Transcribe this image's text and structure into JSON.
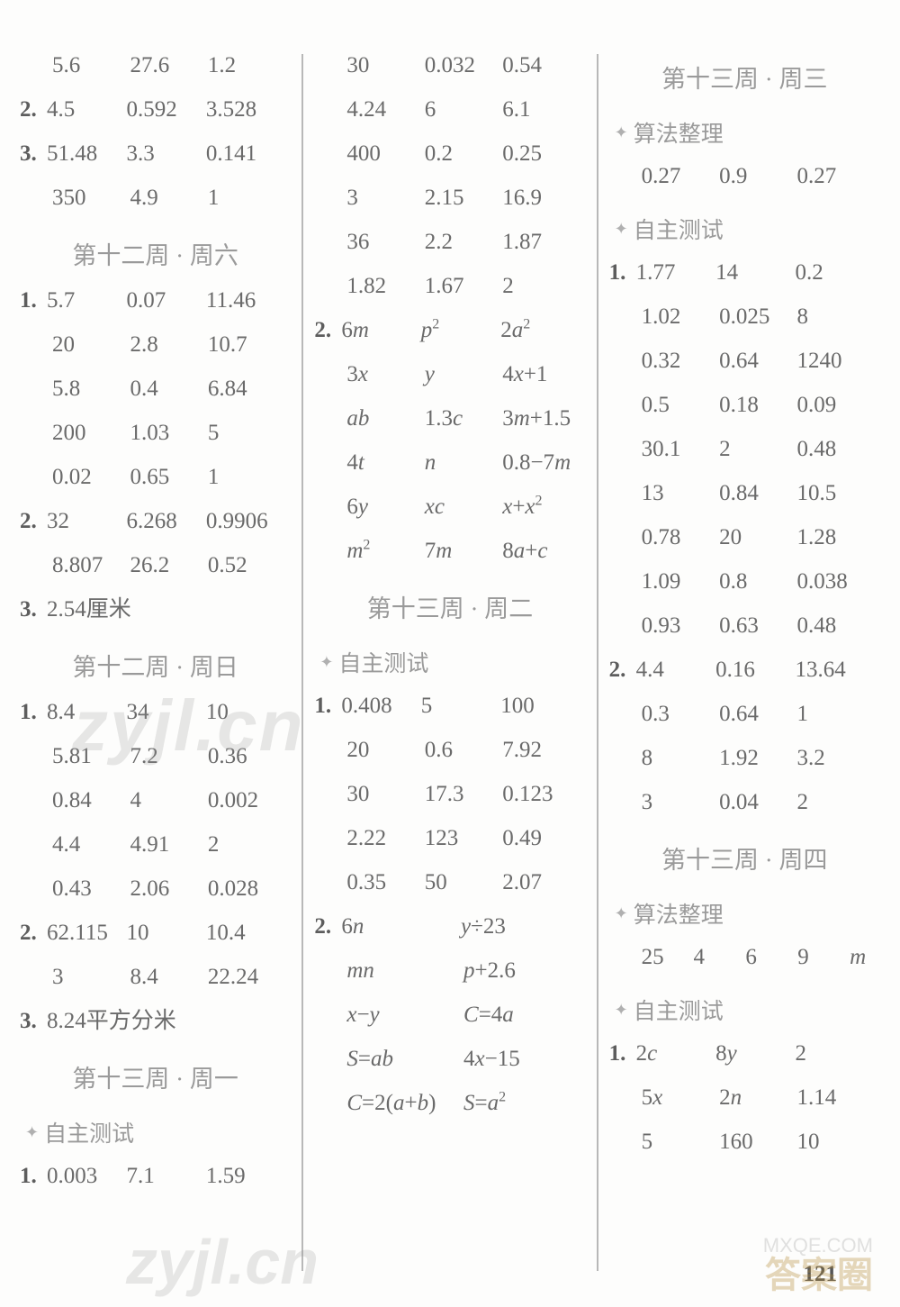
{
  "page_number": "121",
  "watermarks": {
    "wm1": "zyjl.cn",
    "wm2": "zyjl.cn",
    "wm3": "答案圈",
    "wm4": "MXQE.COM"
  },
  "text_color": "#6a6a6a",
  "heading_color": "#9a9a9a",
  "divider_color": "#b8b8b8",
  "background_color": "#fdfdfc",
  "base_fontsize": 25,
  "columns": [
    {
      "items": [
        {
          "type": "row",
          "cells": [
            "5.6",
            "27.6",
            "1.2"
          ]
        },
        {
          "type": "row",
          "label": "2.",
          "cells": [
            "4.5",
            "0.592",
            "3.528"
          ]
        },
        {
          "type": "row",
          "label": "3.",
          "cells": [
            "51.48",
            "3.3",
            "0.141"
          ]
        },
        {
          "type": "row",
          "cells": [
            "350",
            "4.9",
            "1"
          ]
        },
        {
          "type": "heading",
          "text": "第十二周 · 周六"
        },
        {
          "type": "row",
          "label": "1.",
          "cells": [
            "5.7",
            "0.07",
            "11.46"
          ]
        },
        {
          "type": "row",
          "cells": [
            "20",
            "2.8",
            "10.7"
          ]
        },
        {
          "type": "row",
          "cells": [
            "5.8",
            "0.4",
            "6.84"
          ]
        },
        {
          "type": "row",
          "cells": [
            "200",
            "1.03",
            "5"
          ]
        },
        {
          "type": "row",
          "cells": [
            "0.02",
            "0.65",
            "1"
          ]
        },
        {
          "type": "row",
          "label": "2.",
          "cells": [
            "32",
            "6.268",
            "0.9906"
          ]
        },
        {
          "type": "row",
          "cells": [
            "8.807",
            "26.2",
            "0.52"
          ]
        },
        {
          "type": "plain",
          "label": "3.",
          "text": "2.54厘米"
        },
        {
          "type": "heading",
          "text": "第十二周 · 周日"
        },
        {
          "type": "row",
          "label": "1.",
          "cells": [
            "8.4",
            "34",
            "10"
          ]
        },
        {
          "type": "row",
          "cells": [
            "5.81",
            "7.2",
            "0.36"
          ]
        },
        {
          "type": "row",
          "cells": [
            "0.84",
            "4",
            "0.002"
          ]
        },
        {
          "type": "row",
          "cells": [
            "4.4",
            "4.91",
            "2"
          ]
        },
        {
          "type": "row",
          "cells": [
            "0.43",
            "2.06",
            "0.028"
          ]
        },
        {
          "type": "row",
          "label": "2.",
          "cells": [
            "62.115",
            "10",
            "10.4"
          ]
        },
        {
          "type": "row",
          "cells": [
            "3",
            "8.4",
            "22.24"
          ]
        },
        {
          "type": "plain",
          "label": "3.",
          "text": "8.24平方分米"
        },
        {
          "type": "heading",
          "text": "第十三周 · 周一"
        },
        {
          "type": "sub",
          "text": "自主测试"
        },
        {
          "type": "row",
          "label": "1.",
          "cells": [
            "0.003",
            "7.1",
            "1.59"
          ]
        }
      ]
    },
    {
      "items": [
        {
          "type": "row",
          "cells": [
            "30",
            "0.032",
            "0.54"
          ]
        },
        {
          "type": "row",
          "cells": [
            "4.24",
            "6",
            "6.1"
          ]
        },
        {
          "type": "row",
          "cells": [
            "400",
            "0.2",
            "0.25"
          ]
        },
        {
          "type": "row",
          "cells": [
            "3",
            "2.15",
            "16.9"
          ]
        },
        {
          "type": "row",
          "cells": [
            "36",
            "2.2",
            "1.87"
          ]
        },
        {
          "type": "row",
          "cells": [
            "1.82",
            "1.67",
            "2"
          ]
        },
        {
          "type": "row",
          "label": "2.",
          "cells": [
            "6<span class='it'>m</span>",
            "<span class='it'>p</span><sup>2</sup>",
            "2<span class='it'>a</span><sup>2</sup>"
          ]
        },
        {
          "type": "row",
          "cells": [
            "3<span class='it'>x</span>",
            "<span class='it'>y</span>",
            "4<span class='it'>x</span>+1"
          ]
        },
        {
          "type": "row",
          "cells": [
            "<span class='it'>ab</span>",
            "1.3<span class='it'>c</span>",
            "3<span class='it'>m</span>+1.5"
          ]
        },
        {
          "type": "row",
          "cells": [
            "4<span class='it'>t</span>",
            "<span class='it'>n</span>",
            "0.8−7<span class='it'>m</span>"
          ]
        },
        {
          "type": "row",
          "cells": [
            "6<span class='it'>y</span>",
            "<span class='it'>xc</span>",
            "<span class='it'>x</span>+<span class='it'>x</span><sup>2</sup>"
          ]
        },
        {
          "type": "row",
          "cells": [
            "<span class='it'>m</span><sup>2</sup>",
            "7<span class='it'>m</span>",
            "8<span class='it'>a</span>+<span class='it'>c</span>"
          ]
        },
        {
          "type": "heading",
          "text": "第十三周 · 周二"
        },
        {
          "type": "sub",
          "text": "自主测试"
        },
        {
          "type": "row",
          "label": "1.",
          "cells": [
            "0.408",
            "5",
            "100"
          ]
        },
        {
          "type": "row",
          "cells": [
            "20",
            "0.6",
            "7.92"
          ]
        },
        {
          "type": "row",
          "cells": [
            "30",
            "17.3",
            "0.123"
          ]
        },
        {
          "type": "row",
          "cells": [
            "2.22",
            "123",
            "0.49"
          ]
        },
        {
          "type": "row",
          "cells": [
            "0.35",
            "50",
            "2.07"
          ]
        },
        {
          "type": "row2",
          "label": "2.",
          "cells": [
            "6<span class='it'>n</span>",
            "<span class='it'>y</span>÷23"
          ]
        },
        {
          "type": "row2",
          "cells": [
            "<span class='it'>mn</span>",
            "<span class='it'>p</span>+2.6"
          ]
        },
        {
          "type": "row2",
          "cells": [
            "<span class='it'>x</span>−<span class='it'>y</span>",
            "<span class='it'>C</span>=4<span class='it'>a</span>"
          ]
        },
        {
          "type": "row2",
          "cells": [
            "<span class='it'>S</span>=<span class='it'>ab</span>",
            "4<span class='it'>x</span>−15"
          ]
        },
        {
          "type": "row2",
          "cells": [
            "<span class='it'>C</span>=2(<span class='it'>a</span>+<span class='it'>b</span>)",
            "<span class='it'>S</span>=<span class='it'>a</span><sup>2</sup>"
          ]
        }
      ]
    },
    {
      "items": [
        {
          "type": "heading",
          "text": "第十三周 · 周三"
        },
        {
          "type": "sub",
          "text": "算法整理"
        },
        {
          "type": "row",
          "cells": [
            "0.27",
            "0.9",
            "0.27"
          ]
        },
        {
          "type": "sub",
          "text": "自主测试"
        },
        {
          "type": "row",
          "label": "1.",
          "cells": [
            "1.77",
            "14",
            "0.2"
          ]
        },
        {
          "type": "row",
          "cells": [
            "1.02",
            "0.025",
            "8"
          ]
        },
        {
          "type": "row",
          "cells": [
            "0.32",
            "0.64",
            "1240"
          ]
        },
        {
          "type": "row",
          "cells": [
            "0.5",
            "0.18",
            "0.09"
          ]
        },
        {
          "type": "row",
          "cells": [
            "30.1",
            "2",
            "0.48"
          ]
        },
        {
          "type": "row",
          "cells": [
            "13",
            "0.84",
            "10.5"
          ]
        },
        {
          "type": "row",
          "cells": [
            "0.78",
            "20",
            "1.28"
          ]
        },
        {
          "type": "row",
          "cells": [
            "1.09",
            "0.8",
            "0.038"
          ]
        },
        {
          "type": "row",
          "cells": [
            "0.93",
            "0.63",
            "0.48"
          ]
        },
        {
          "type": "row",
          "label": "2.",
          "cells": [
            "4.4",
            "0.16",
            "13.64"
          ]
        },
        {
          "type": "row",
          "cells": [
            "0.3",
            "0.64",
            "1"
          ]
        },
        {
          "type": "row",
          "cells": [
            "8",
            "1.92",
            "3.2"
          ]
        },
        {
          "type": "row",
          "cells": [
            "3",
            "0.04",
            "2"
          ]
        },
        {
          "type": "heading",
          "text": "第十三周 · 周四"
        },
        {
          "type": "sub",
          "text": "算法整理"
        },
        {
          "type": "row5",
          "cells": [
            "25",
            "4",
            "6",
            "9",
            "<span class='it'>m</span>"
          ]
        },
        {
          "type": "sub",
          "text": "自主测试"
        },
        {
          "type": "row",
          "label": "1.",
          "cells": [
            "2<span class='it'>c</span>",
            "8<span class='it'>y</span>",
            "2"
          ]
        },
        {
          "type": "row",
          "cells": [
            "5<span class='it'>x</span>",
            "2<span class='it'>n</span>",
            "1.14"
          ]
        },
        {
          "type": "row",
          "cells": [
            "5",
            "160",
            "10"
          ]
        }
      ]
    }
  ]
}
